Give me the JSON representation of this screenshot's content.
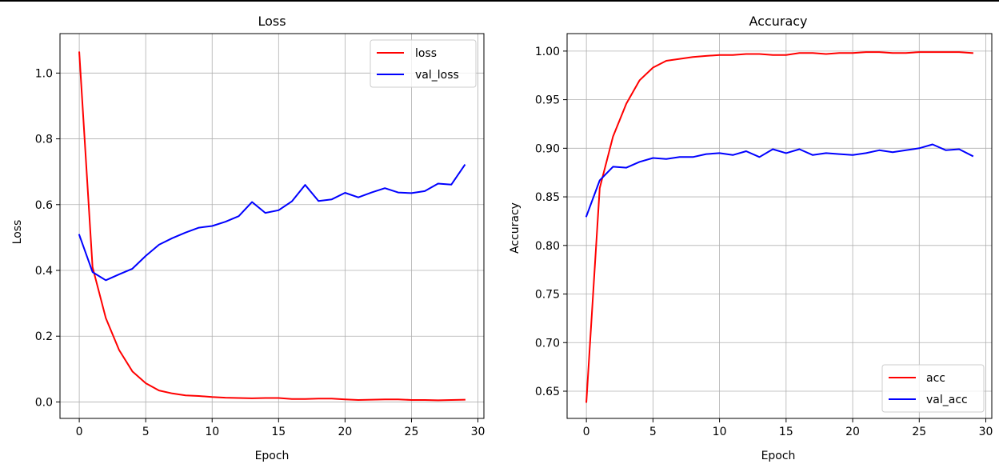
{
  "chart_data": [
    {
      "type": "line",
      "title": "Loss",
      "xlabel": "Epoch",
      "ylabel": "Loss",
      "xlim": [
        -1.45,
        30.45
      ],
      "ylim": [
        -0.05,
        1.12
      ],
      "xticks": [
        0,
        5,
        10,
        15,
        20,
        25,
        30
      ],
      "xtick_labels": [
        "0",
        "5",
        "10",
        "15",
        "20",
        "25",
        "30"
      ],
      "yticks": [
        0.0,
        0.2,
        0.4,
        0.6,
        0.8,
        1.0
      ],
      "ytick_labels": [
        "0.0",
        "0.2",
        "0.4",
        "0.6",
        "0.8",
        "1.0"
      ],
      "grid": true,
      "legend_position": "top-right",
      "x": [
        0,
        1,
        2,
        3,
        4,
        5,
        6,
        7,
        8,
        9,
        10,
        11,
        12,
        13,
        14,
        15,
        16,
        17,
        18,
        19,
        20,
        21,
        22,
        23,
        24,
        25,
        26,
        27,
        28,
        29
      ],
      "series": [
        {
          "name": "loss",
          "color": "#ff0000",
          "values": [
            1.063,
            0.41,
            0.255,
            0.158,
            0.093,
            0.057,
            0.035,
            0.026,
            0.02,
            0.018,
            0.015,
            0.013,
            0.012,
            0.011,
            0.012,
            0.012,
            0.009,
            0.009,
            0.01,
            0.01,
            0.008,
            0.006,
            0.007,
            0.008,
            0.008,
            0.006,
            0.006,
            0.005,
            0.006,
            0.007
          ]
        },
        {
          "name": "val_loss",
          "color": "#0000ff",
          "values": [
            0.508,
            0.395,
            0.37,
            0.388,
            0.405,
            0.444,
            0.478,
            0.498,
            0.515,
            0.53,
            0.535,
            0.548,
            0.565,
            0.608,
            0.575,
            0.583,
            0.61,
            0.66,
            0.611,
            0.616,
            0.636,
            0.622,
            0.637,
            0.65,
            0.637,
            0.635,
            0.641,
            0.664,
            0.661,
            0.72
          ]
        }
      ]
    },
    {
      "type": "line",
      "title": "Accuracy",
      "xlabel": "Epoch",
      "ylabel": "Accuracy",
      "xlim": [
        -1.45,
        30.45
      ],
      "ylim": [
        0.622,
        1.018
      ],
      "xticks": [
        0,
        5,
        10,
        15,
        20,
        25,
        30
      ],
      "xtick_labels": [
        "0",
        "5",
        "10",
        "15",
        "20",
        "25",
        "30"
      ],
      "yticks": [
        0.65,
        0.7,
        0.75,
        0.8,
        0.85,
        0.9,
        0.95,
        1.0
      ],
      "ytick_labels": [
        "0.65",
        "0.70",
        "0.75",
        "0.80",
        "0.85",
        "0.90",
        "0.95",
        "1.00"
      ],
      "grid": true,
      "legend_position": "bottom-right",
      "x": [
        0,
        1,
        2,
        3,
        4,
        5,
        6,
        7,
        8,
        9,
        10,
        11,
        12,
        13,
        14,
        15,
        16,
        17,
        18,
        19,
        20,
        21,
        22,
        23,
        24,
        25,
        26,
        27,
        28,
        29
      ],
      "series": [
        {
          "name": "acc",
          "color": "#ff0000",
          "values": [
            0.639,
            0.859,
            0.912,
            0.946,
            0.97,
            0.983,
            0.99,
            0.992,
            0.994,
            0.995,
            0.996,
            0.996,
            0.997,
            0.997,
            0.996,
            0.996,
            0.998,
            0.998,
            0.997,
            0.998,
            0.998,
            0.999,
            0.999,
            0.998,
            0.998,
            0.999,
            0.999,
            0.999,
            0.999,
            0.998
          ]
        },
        {
          "name": "val_acc",
          "color": "#0000ff",
          "values": [
            0.83,
            0.867,
            0.881,
            0.88,
            0.886,
            0.89,
            0.889,
            0.891,
            0.891,
            0.894,
            0.895,
            0.893,
            0.897,
            0.891,
            0.899,
            0.895,
            0.899,
            0.893,
            0.895,
            0.894,
            0.893,
            0.895,
            0.898,
            0.896,
            0.898,
            0.9,
            0.904,
            0.898,
            0.899,
            0.892
          ]
        }
      ]
    }
  ]
}
